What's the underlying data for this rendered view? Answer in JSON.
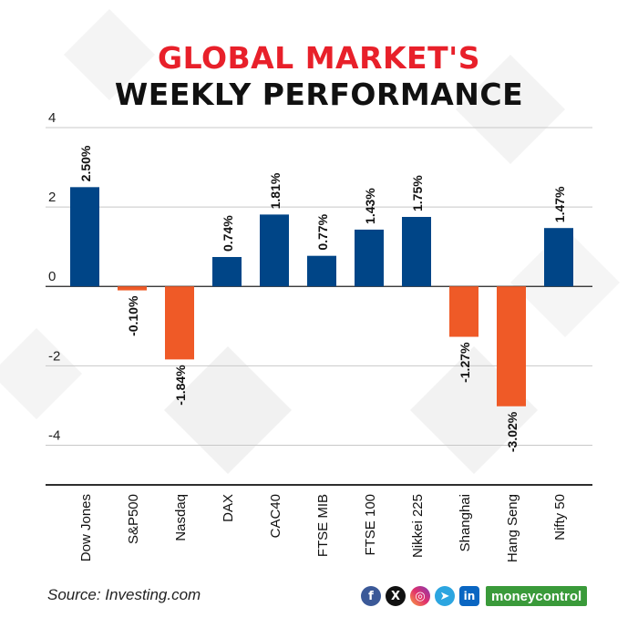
{
  "title": {
    "line1": "GLOBAL MARKET'S",
    "line2": "WEEKLY PERFORMANCE"
  },
  "source": "Source: Investing.com",
  "footer": {
    "icons": [
      "facebook-icon",
      "x-icon",
      "instagram-icon",
      "telegram-icon",
      "linkedin-icon"
    ],
    "brand": "moneycontrol"
  },
  "colors": {
    "positive": "#004587",
    "negative": "#ef5a27",
    "title_accent": "#e8202a",
    "brand": "#3a9a3a"
  },
  "chart_data": {
    "type": "bar",
    "categories": [
      "Dow Jones",
      "S&P500",
      "Nasdaq",
      "DAX",
      "CAC40",
      "FTSE MIB",
      "FTSE 100",
      "Nikkei 225",
      "Shanghai",
      "Hang Seng",
      "Nifty 50"
    ],
    "values": [
      2.5,
      -0.1,
      -1.84,
      0.74,
      1.81,
      0.77,
      1.43,
      1.75,
      -1.27,
      -3.02,
      1.47
    ],
    "labels": [
      "2.50%",
      "-0.10%",
      "-1.84%",
      "0.74%",
      "1.81%",
      "0.77%",
      "1.43%",
      "1.75%",
      "-1.27%",
      "-3.02%",
      "1.47%"
    ],
    "yticks": [
      4,
      2,
      0,
      -2,
      -4
    ],
    "ylim": [
      -5,
      4
    ],
    "grid": true,
    "legend": "none"
  }
}
